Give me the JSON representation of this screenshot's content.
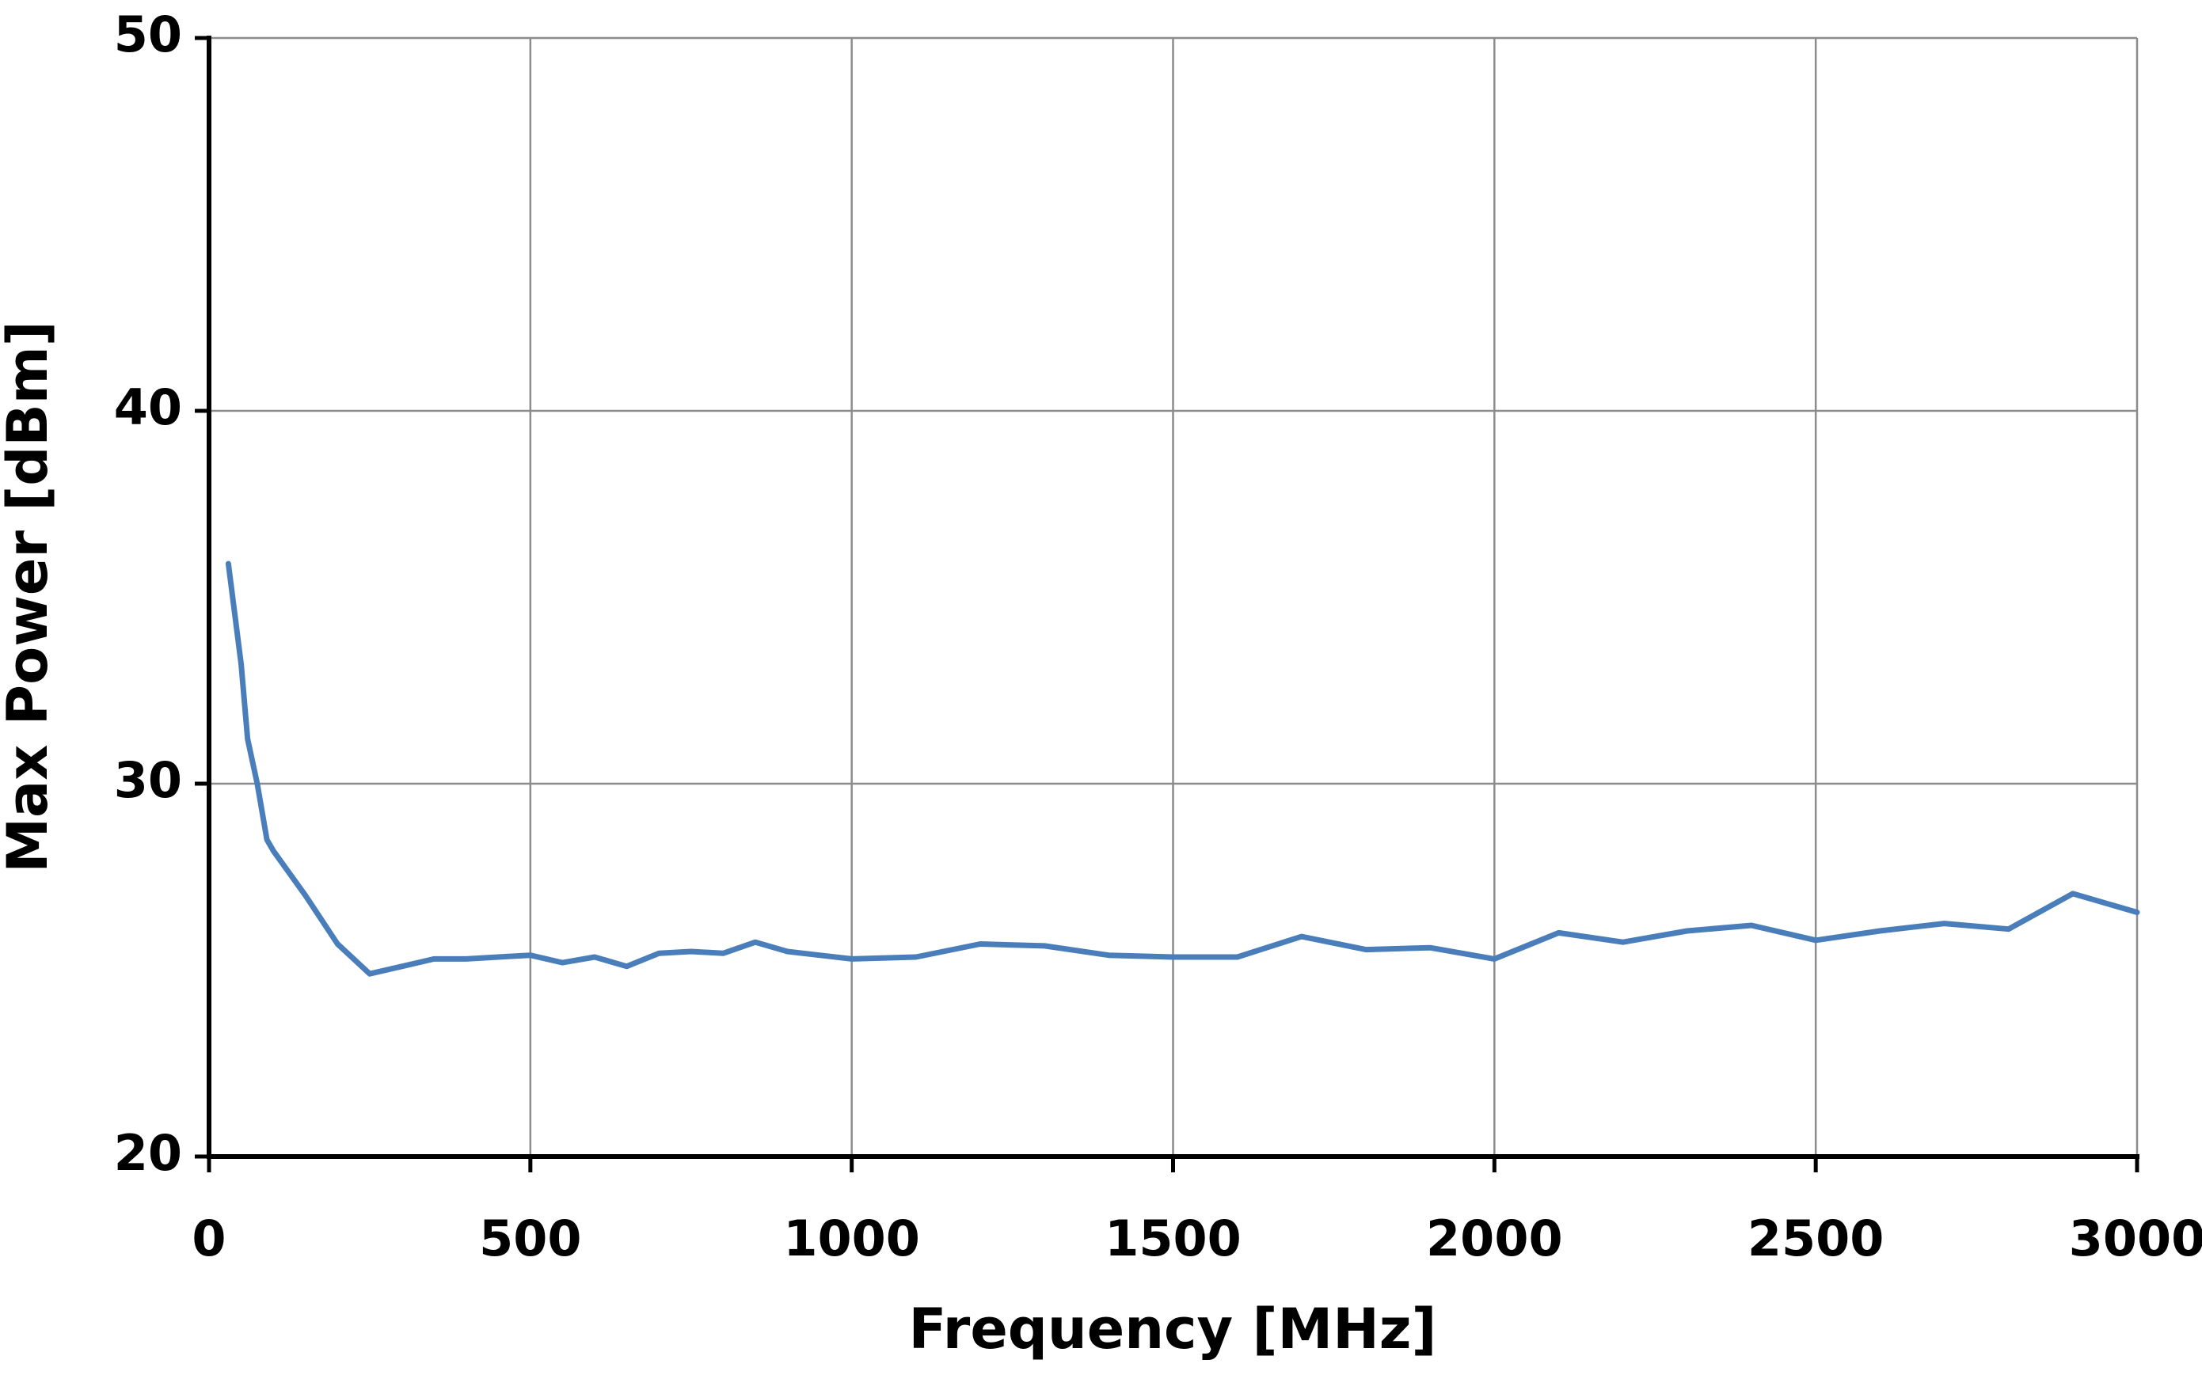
{
  "chart_data": {
    "type": "line",
    "x_label": "Frequency [MHz]",
    "y_label": "Max Power [dBm]",
    "x": [
      30,
      50,
      60,
      75,
      90,
      100,
      150,
      200,
      250,
      300,
      350,
      400,
      450,
      500,
      550,
      600,
      650,
      700,
      750,
      800,
      850,
      900,
      950,
      1000,
      1100,
      1200,
      1300,
      1400,
      1500,
      1600,
      1700,
      1800,
      1900,
      2000,
      2100,
      2200,
      2300,
      2400,
      2500,
      2600,
      2700,
      2800,
      2900,
      3000
    ],
    "series": [
      {
        "color": "#4a7ebb",
        "values": [
          35.9,
          33.2,
          31.2,
          30.0,
          28.5,
          28.2,
          27.0,
          25.7,
          24.9,
          25.1,
          25.3,
          25.3,
          25.35,
          25.4,
          25.2,
          25.35,
          25.1,
          25.45,
          25.5,
          25.45,
          25.75,
          25.5,
          25.4,
          25.3,
          25.35,
          25.7,
          25.65,
          25.4,
          25.35,
          25.35,
          25.9,
          25.55,
          25.6,
          25.3,
          26.0,
          25.75,
          26.05,
          26.2,
          25.8,
          26.05,
          26.25,
          26.1,
          27.05,
          26.55
        ]
      }
    ],
    "xlim": [
      0,
      3000
    ],
    "xticks": [
      0,
      500,
      1000,
      1500,
      2000,
      2500,
      3000
    ],
    "ylim": [
      20,
      50
    ],
    "yticks": [
      20,
      30,
      40,
      50
    ],
    "grid": true
  }
}
